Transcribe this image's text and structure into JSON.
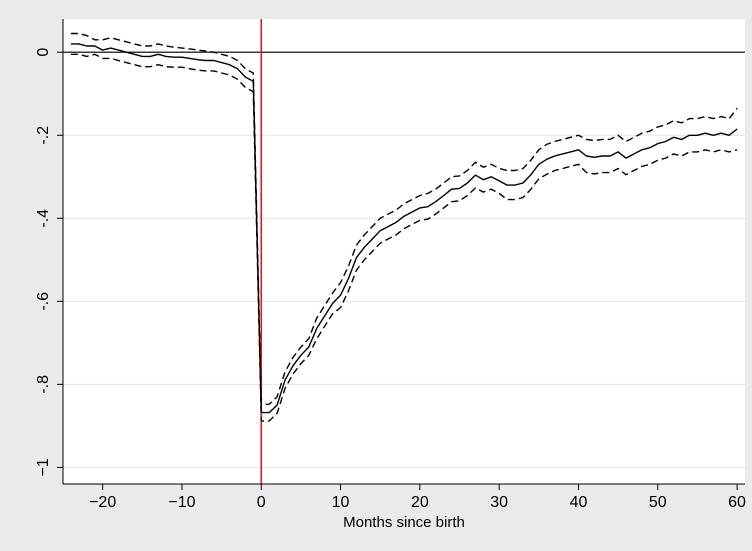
{
  "chart_data": {
    "type": "line",
    "title": "",
    "xlabel": "Months since birth",
    "ylabel": "",
    "xlim": [
      -25,
      61
    ],
    "ylim": [
      -1.04,
      0.08
    ],
    "xticks": [
      -20,
      -10,
      0,
      10,
      20,
      30,
      40,
      50,
      60
    ],
    "xtick_labels": [
      "−20",
      "−10",
      "0",
      "10",
      "20",
      "30",
      "40",
      "50",
      "60"
    ],
    "yticks": [
      0,
      -0.2,
      -0.4,
      -0.6,
      -0.8,
      -1
    ],
    "ytick_labels": [
      "0",
      "-.2",
      "-.4",
      "-.6",
      "-.8",
      "−1"
    ],
    "grid": "horizontal",
    "reference_lines": {
      "horizontal_at_y": 0,
      "vertical_at_x": 0
    },
    "colors": {
      "background": "#eaeaea",
      "plot_area": "#ffffff",
      "grid": "#e4e4e4",
      "estimate": "#000000",
      "confidence_band": "#000000",
      "event_line": "#d62020"
    },
    "x": [
      -24,
      -23,
      -22,
      -21,
      -20,
      -19,
      -18,
      -17,
      -16,
      -15,
      -14,
      -13,
      -12,
      -11,
      -10,
      -9,
      -8,
      -7,
      -6,
      -5,
      -4,
      -3,
      -2,
      -1,
      0,
      1,
      2,
      3,
      4,
      5,
      6,
      7,
      8,
      9,
      10,
      11,
      12,
      13,
      14,
      15,
      16,
      17,
      18,
      19,
      20,
      21,
      22,
      23,
      24,
      25,
      26,
      27,
      28,
      29,
      30,
      31,
      32,
      33,
      34,
      35,
      36,
      37,
      38,
      39,
      40,
      41,
      42,
      43,
      44,
      45,
      46,
      47,
      48,
      49,
      50,
      51,
      52,
      53,
      54,
      55,
      56,
      57,
      58,
      59,
      60
    ],
    "series": [
      {
        "role": "estimate",
        "values": [
          0.02,
          0.02,
          0.015,
          0.015,
          0.005,
          0.01,
          0.005,
          0.0,
          -0.005,
          -0.01,
          -0.01,
          -0.005,
          -0.01,
          -0.012,
          -0.012,
          -0.015,
          -0.018,
          -0.02,
          -0.02,
          -0.025,
          -0.03,
          -0.04,
          -0.06,
          -0.07,
          -0.868,
          -0.868,
          -0.85,
          -0.79,
          -0.755,
          -0.73,
          -0.71,
          -0.665,
          -0.635,
          -0.605,
          -0.585,
          -0.545,
          -0.495,
          -0.47,
          -0.45,
          -0.43,
          -0.42,
          -0.41,
          -0.395,
          -0.385,
          -0.375,
          -0.372,
          -0.36,
          -0.345,
          -0.33,
          -0.328,
          -0.315,
          -0.296,
          -0.307,
          -0.3,
          -0.31,
          -0.32,
          -0.32,
          -0.315,
          -0.295,
          -0.27,
          -0.258,
          -0.25,
          -0.245,
          -0.24,
          -0.235,
          -0.25,
          -0.253,
          -0.25,
          -0.25,
          -0.24,
          -0.255,
          -0.245,
          -0.235,
          -0.23,
          -0.22,
          -0.215,
          -0.205,
          -0.21,
          -0.2,
          -0.2,
          -0.195,
          -0.2,
          -0.195,
          -0.2,
          -0.185
        ]
      },
      {
        "role": "upper_bound",
        "values": [
          0.045,
          0.045,
          0.04,
          0.03,
          0.03,
          0.035,
          0.03,
          0.025,
          0.02,
          0.015,
          0.015,
          0.02,
          0.015,
          0.012,
          0.01,
          0.008,
          0.005,
          0.003,
          0.0,
          -0.005,
          -0.01,
          -0.02,
          -0.04,
          -0.05,
          -0.848,
          -0.848,
          -0.83,
          -0.77,
          -0.735,
          -0.71,
          -0.69,
          -0.64,
          -0.61,
          -0.58,
          -0.555,
          -0.515,
          -0.465,
          -0.44,
          -0.42,
          -0.4,
          -0.39,
          -0.38,
          -0.365,
          -0.355,
          -0.345,
          -0.34,
          -0.33,
          -0.315,
          -0.3,
          -0.298,
          -0.285,
          -0.265,
          -0.277,
          -0.27,
          -0.28,
          -0.285,
          -0.285,
          -0.28,
          -0.26,
          -0.235,
          -0.222,
          -0.215,
          -0.21,
          -0.205,
          -0.2,
          -0.21,
          -0.213,
          -0.21,
          -0.21,
          -0.2,
          -0.215,
          -0.205,
          -0.195,
          -0.19,
          -0.18,
          -0.175,
          -0.165,
          -0.17,
          -0.16,
          -0.16,
          -0.155,
          -0.16,
          -0.155,
          -0.16,
          -0.135
        ]
      },
      {
        "role": "lower_bound",
        "values": [
          -0.005,
          -0.005,
          -0.01,
          -0.005,
          -0.015,
          -0.015,
          -0.02,
          -0.025,
          -0.03,
          -0.035,
          -0.035,
          -0.03,
          -0.035,
          -0.036,
          -0.036,
          -0.04,
          -0.043,
          -0.045,
          -0.045,
          -0.05,
          -0.055,
          -0.065,
          -0.085,
          -0.095,
          -0.888,
          -0.888,
          -0.87,
          -0.81,
          -0.775,
          -0.75,
          -0.73,
          -0.69,
          -0.66,
          -0.63,
          -0.615,
          -0.575,
          -0.525,
          -0.5,
          -0.48,
          -0.46,
          -0.45,
          -0.44,
          -0.425,
          -0.415,
          -0.405,
          -0.402,
          -0.39,
          -0.375,
          -0.36,
          -0.358,
          -0.345,
          -0.327,
          -0.337,
          -0.33,
          -0.34,
          -0.355,
          -0.355,
          -0.35,
          -0.33,
          -0.305,
          -0.294,
          -0.285,
          -0.28,
          -0.275,
          -0.27,
          -0.29,
          -0.293,
          -0.29,
          -0.29,
          -0.28,
          -0.295,
          -0.285,
          -0.275,
          -0.27,
          -0.26,
          -0.255,
          -0.245,
          -0.25,
          -0.24,
          -0.24,
          -0.235,
          -0.24,
          -0.235,
          -0.24,
          -0.235
        ]
      }
    ]
  }
}
